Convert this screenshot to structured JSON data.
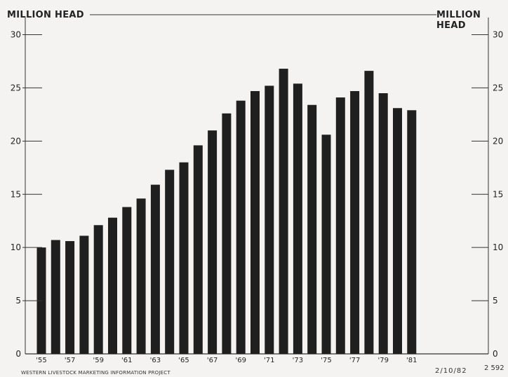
{
  "header": {
    "left_unit": "MILLION HEAD",
    "right_unit": "MILLION HEAD"
  },
  "footer": {
    "source": "WESTERN LIVESTOCK MARKETING INFORMATION PROJECT",
    "date": "2/10/82",
    "code": "2 592"
  },
  "chart_data": {
    "type": "bar",
    "ylabel": "MILLION HEAD",
    "ylim": [
      0,
      33
    ],
    "yticks": [
      0,
      5,
      10,
      15,
      20,
      25,
      30
    ],
    "grid": false,
    "categories": [
      "1955",
      "1956",
      "1957",
      "1958",
      "1959",
      "1960",
      "1961",
      "1962",
      "1963",
      "1964",
      "1965",
      "1966",
      "1967",
      "1968",
      "1969",
      "1970",
      "1971",
      "1972",
      "1973",
      "1974",
      "1975",
      "1976",
      "1977",
      "1978",
      "1979",
      "1980",
      "1981"
    ],
    "x_tick_labels": [
      {
        "index": 0,
        "label": "'55"
      },
      {
        "index": 2,
        "label": "'57"
      },
      {
        "index": 4,
        "label": "'59"
      },
      {
        "index": 6,
        "label": "'61"
      },
      {
        "index": 8,
        "label": "'63"
      },
      {
        "index": 10,
        "label": "'65"
      },
      {
        "index": 12,
        "label": "'67"
      },
      {
        "index": 14,
        "label": "'69"
      },
      {
        "index": 16,
        "label": "'71"
      },
      {
        "index": 18,
        "label": "'73"
      },
      {
        "index": 20,
        "label": "'75"
      },
      {
        "index": 22,
        "label": "'77"
      },
      {
        "index": 24,
        "label": "'79"
      },
      {
        "index": 26,
        "label": "'81"
      }
    ],
    "values": [
      10.0,
      10.7,
      10.6,
      11.1,
      12.1,
      12.8,
      13.8,
      14.6,
      15.9,
      17.3,
      18.0,
      19.6,
      21.0,
      22.6,
      23.8,
      24.7,
      25.2,
      26.8,
      25.4,
      23.4,
      20.6,
      24.1,
      24.7,
      26.6,
      24.5,
      23.1,
      22.9
    ],
    "bar_color": "#1f1f1f"
  }
}
